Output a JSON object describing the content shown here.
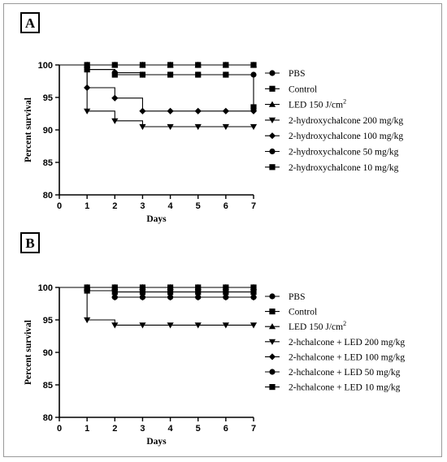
{
  "chart_data": [
    {
      "panel": "A",
      "type": "line",
      "step": true,
      "xlabel": "Days",
      "ylabel": "Percent survival",
      "xlim": [
        0,
        7
      ],
      "ylim": [
        80,
        100
      ],
      "xticks": [
        "0",
        "1",
        "2",
        "3",
        "4",
        "5",
        "6",
        "7"
      ],
      "yticks": [
        "80",
        "85",
        "90",
        "95",
        "100"
      ],
      "x": [
        1,
        2,
        3,
        4,
        5,
        6,
        7
      ],
      "series": [
        {
          "name": "PBS",
          "marker": "circle",
          "values": [
            100,
            100,
            100,
            100,
            100,
            100,
            100
          ]
        },
        {
          "name": "Control",
          "marker": "square",
          "values": [
            100,
            100,
            100,
            100,
            100,
            100,
            100
          ]
        },
        {
          "name": "LED 150 J/cm²",
          "marker": "triangle-up",
          "values": [
            100,
            100,
            100,
            100,
            100,
            100,
            100
          ]
        },
        {
          "name": "2-hydroxychalcone 200 mg/kg",
          "marker": "triangle-down",
          "values": [
            92.9,
            91.4,
            90.5,
            90.5,
            90.5,
            90.5,
            90.5
          ]
        },
        {
          "name": "2-hydroxychalcone 100 mg/kg",
          "marker": "diamond",
          "values": [
            96.5,
            94.9,
            92.9,
            92.9,
            92.9,
            92.9,
            92.9
          ]
        },
        {
          "name": "2-hydroxychalcone 50 mg/kg",
          "marker": "circle",
          "values": [
            99.3,
            98.8,
            98.5,
            98.5,
            98.5,
            98.5,
            98.5
          ]
        },
        {
          "name": "2-hydroxychalcone 10 mg/kg",
          "marker": "square",
          "values": [
            99.3,
            98.5,
            98.5,
            98.5,
            98.5,
            98.5,
            93.5
          ]
        }
      ]
    },
    {
      "panel": "B",
      "type": "line",
      "step": true,
      "xlabel": "Days",
      "ylabel": "Percent survival",
      "xlim": [
        0,
        7
      ],
      "ylim": [
        80,
        100
      ],
      "xticks": [
        "0",
        "1",
        "2",
        "3",
        "4",
        "5",
        "6",
        "7"
      ],
      "yticks": [
        "80",
        "85",
        "90",
        "95",
        "100"
      ],
      "x": [
        1,
        2,
        3,
        4,
        5,
        6,
        7
      ],
      "series": [
        {
          "name": "PBS",
          "marker": "circle",
          "values": [
            100,
            100,
            100,
            100,
            100,
            100,
            100
          ]
        },
        {
          "name": "Control",
          "marker": "square",
          "values": [
            100,
            100,
            100,
            100,
            100,
            100,
            100
          ]
        },
        {
          "name": "LED 150 J/cm²",
          "marker": "triangle-up",
          "values": [
            100,
            100,
            100,
            100,
            100,
            100,
            100
          ]
        },
        {
          "name": "2-hchalcone + LED 200 mg/kg",
          "marker": "triangle-down",
          "values": [
            95.0,
            94.2,
            94.2,
            94.2,
            94.2,
            94.2,
            94.2
          ]
        },
        {
          "name": "2-hchalcone + LED  100 mg/kg",
          "marker": "diamond",
          "values": [
            99.5,
            98.5,
            98.5,
            98.5,
            98.5,
            98.5,
            98.5
          ]
        },
        {
          "name": "2-hchalcone + LED 50 mg/kg",
          "marker": "circle",
          "values": [
            99.5,
            98.5,
            98.5,
            98.5,
            98.5,
            98.5,
            98.5
          ]
        },
        {
          "name": "2-hchalcone + LED 10 mg/kg",
          "marker": "square",
          "values": [
            99.5,
            99.3,
            99.3,
            99.3,
            99.3,
            99.3,
            99.3
          ]
        }
      ]
    }
  ]
}
